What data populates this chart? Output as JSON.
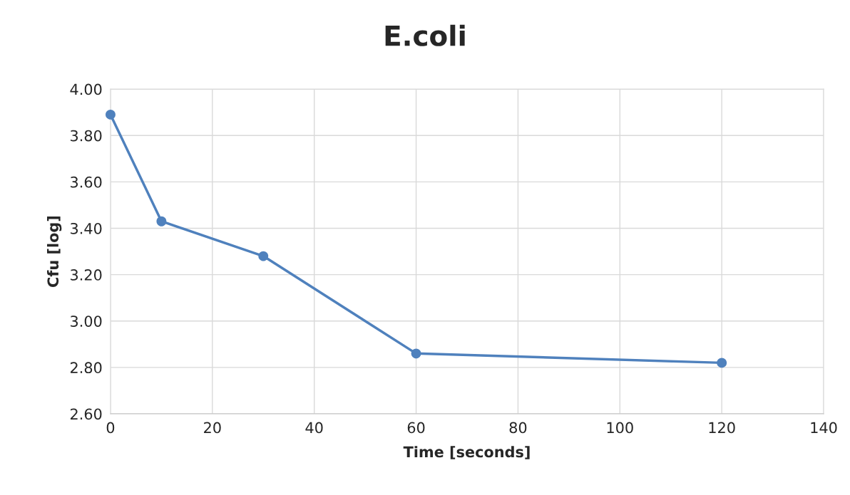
{
  "chart_data": {
    "type": "line",
    "title": "E.coli",
    "xlabel": "Time [seconds]",
    "ylabel": "Cfu [log]",
    "x": [
      0,
      10,
      30,
      60,
      120
    ],
    "series": [
      {
        "color": "#4f81bd",
        "values": [
          3.89,
          3.43,
          3.28,
          2.86,
          2.82
        ]
      }
    ],
    "xlim": [
      0,
      140
    ],
    "xticks": [
      0,
      20,
      40,
      60,
      80,
      100,
      120,
      140
    ],
    "ylim": [
      2.6,
      4.0
    ],
    "yticks": [
      {
        "value": 2.6,
        "label": "2.60"
      },
      {
        "value": 2.8,
        "label": "2.80"
      },
      {
        "value": 3.0,
        "label": "3.00"
      },
      {
        "value": 3.2,
        "label": "3.20"
      },
      {
        "value": 3.4,
        "label": "3.40"
      },
      {
        "value": 3.6,
        "label": "3.60"
      },
      {
        "value": 3.8,
        "label": "3.80"
      },
      {
        "value": 4.0,
        "label": "4.00"
      }
    ],
    "grid": true,
    "marker": "circle",
    "line_style": "solid"
  }
}
